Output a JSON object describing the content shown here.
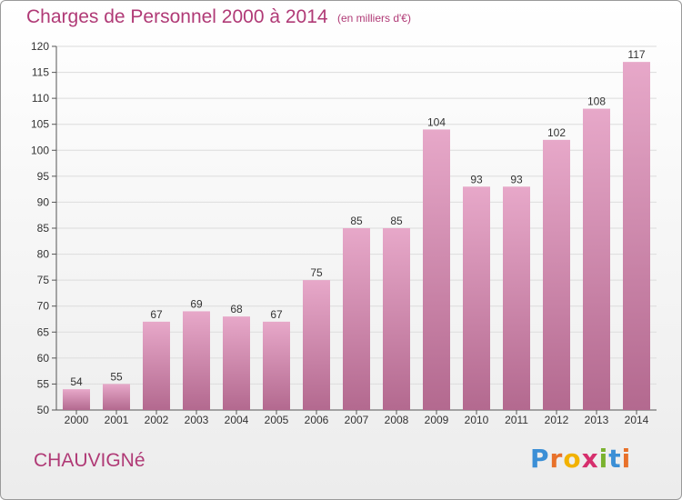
{
  "header": {
    "title": "Charges de Personnel 2000 à 2014",
    "subtitle": "(en milliers d'€)"
  },
  "footer": {
    "commune": "CHAUVIGNé",
    "logo_letters": [
      "P",
      "r",
      "o",
      "x",
      "i",
      "t",
      "i"
    ],
    "logo_colors": [
      "#3b8fd6",
      "#e8712a",
      "#f2b200",
      "#d62f6d",
      "#7ab22e",
      "#3b8fd6",
      "#e8712a"
    ]
  },
  "colors": {
    "bar_top": "#e7a8c9",
    "bar_bottom": "#b3698f",
    "text": "#b03a76",
    "axis_text": "#333333",
    "grid": "#dcdcdc"
  },
  "chart_data": {
    "type": "bar",
    "title": "Charges de Personnel 2000 à 2014",
    "subtitle": "(en milliers d'€)",
    "categories": [
      "2000",
      "2001",
      "2002",
      "2003",
      "2004",
      "2005",
      "2006",
      "2007",
      "2008",
      "2009",
      "2010",
      "2011",
      "2012",
      "2013",
      "2014"
    ],
    "values": [
      54,
      55,
      67,
      69,
      68,
      67,
      75,
      85,
      85,
      104,
      93,
      93,
      102,
      108,
      117
    ],
    "ylim": [
      50,
      120
    ],
    "yticks": [
      50,
      55,
      60,
      65,
      70,
      75,
      80,
      85,
      90,
      95,
      100,
      105,
      110,
      115,
      120
    ],
    "grid": true,
    "data_labels": true
  }
}
